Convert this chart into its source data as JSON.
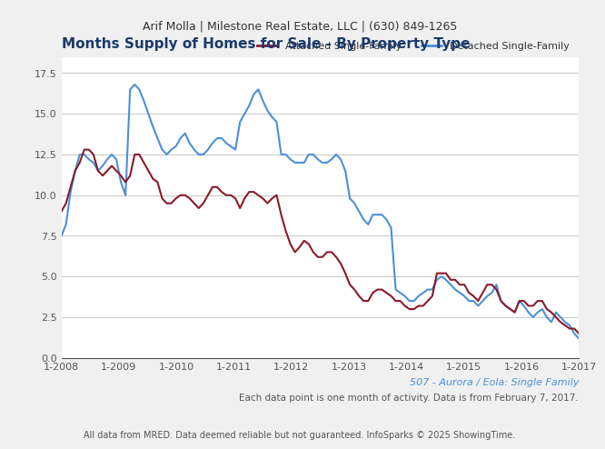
{
  "title": "Months Supply of Homes for Sale - By Property Type",
  "header": "Arif Molla | Milestone Real Estate, LLC | (630) 849-1265",
  "footer1": "507 - Aurora / Eola: Single Family",
  "footer2": "Each data point is one month of activity. Data is from February 7, 2017.",
  "footer3": "All data from MRED. Data deemed reliable but not guaranteed. InfoSparks © 2025 ShowingTime.",
  "legend": [
    "Attached Single-Family",
    "Detached Single-Family"
  ],
  "line_colors": [
    "#8b1a2a",
    "#4a90d9"
  ],
  "ylim": [
    0,
    18.5
  ],
  "yticks": [
    0.0,
    2.5,
    5.0,
    7.5,
    10.0,
    12.5,
    15.0,
    17.5
  ],
  "xtick_labels": [
    "1-2008",
    "1-2009",
    "1-2010",
    "1-2011",
    "1-2012",
    "1-2013",
    "1-2014",
    "1-2015",
    "1-2016",
    "1-2017"
  ],
  "background_color": "#f0f0f0",
  "plot_background": "#ffffff",
  "title_color": "#1a3a6b",
  "header_bg": "#e8e8e8",
  "attached": [
    9.0,
    9.5,
    10.5,
    11.5,
    12.0,
    12.8,
    12.8,
    12.5,
    11.5,
    11.2,
    11.5,
    11.8,
    11.5,
    11.2,
    10.8,
    11.2,
    12.5,
    12.5,
    12.0,
    11.5,
    11.0,
    10.8,
    9.8,
    9.5,
    9.5,
    9.8,
    10.0,
    10.0,
    9.8,
    9.5,
    9.2,
    9.5,
    10.0,
    10.5,
    10.5,
    10.2,
    10.0,
    10.0,
    9.8,
    9.2,
    9.8,
    10.2,
    10.2,
    10.0,
    9.8,
    9.5,
    9.8,
    10.0,
    8.8,
    7.8,
    7.0,
    6.5,
    6.8,
    7.2,
    7.0,
    6.5,
    6.2,
    6.2,
    6.5,
    6.5,
    6.2,
    5.8,
    5.2,
    4.5,
    4.2,
    3.8,
    3.5,
    3.5,
    4.0,
    4.2,
    4.2,
    4.0,
    3.8,
    3.5,
    3.5,
    3.2,
    3.0,
    3.0,
    3.2,
    3.2,
    3.5,
    3.8,
    5.2,
    5.2,
    5.2,
    4.8,
    4.8,
    4.5,
    4.5,
    4.0,
    3.8,
    3.5,
    4.0,
    4.5,
    4.5,
    4.2,
    3.5,
    3.2,
    3.0,
    2.8,
    3.5,
    3.5,
    3.2,
    3.2,
    3.5,
    3.5,
    3.0,
    2.8,
    2.5,
    2.2,
    2.0,
    1.8,
    1.8,
    1.5
  ],
  "detached": [
    7.5,
    8.2,
    10.2,
    11.5,
    12.5,
    12.5,
    12.2,
    12.0,
    11.5,
    11.8,
    12.2,
    12.5,
    12.2,
    10.8,
    10.0,
    16.5,
    16.8,
    16.5,
    15.8,
    15.0,
    14.2,
    13.5,
    12.8,
    12.5,
    12.8,
    13.0,
    13.5,
    13.8,
    13.2,
    12.8,
    12.5,
    12.5,
    12.8,
    13.2,
    13.5,
    13.5,
    13.2,
    13.0,
    12.8,
    14.5,
    15.0,
    15.5,
    16.2,
    16.5,
    15.8,
    15.2,
    14.8,
    14.5,
    12.5,
    12.5,
    12.2,
    12.0,
    12.0,
    12.0,
    12.5,
    12.5,
    12.2,
    12.0,
    12.0,
    12.2,
    12.5,
    12.2,
    11.5,
    9.8,
    9.5,
    9.0,
    8.5,
    8.2,
    8.8,
    8.8,
    8.8,
    8.5,
    8.0,
    4.2,
    4.0,
    3.8,
    3.5,
    3.5,
    3.8,
    4.0,
    4.2,
    4.2,
    4.8,
    5.0,
    4.8,
    4.5,
    4.2,
    4.0,
    3.8,
    3.5,
    3.5,
    3.2,
    3.5,
    3.8,
    4.0,
    4.5,
    3.5,
    3.2,
    3.0,
    2.8,
    3.5,
    3.2,
    2.8,
    2.5,
    2.8,
    3.0,
    2.5,
    2.2,
    2.8,
    2.5,
    2.2,
    2.0,
    1.5,
    1.2
  ]
}
